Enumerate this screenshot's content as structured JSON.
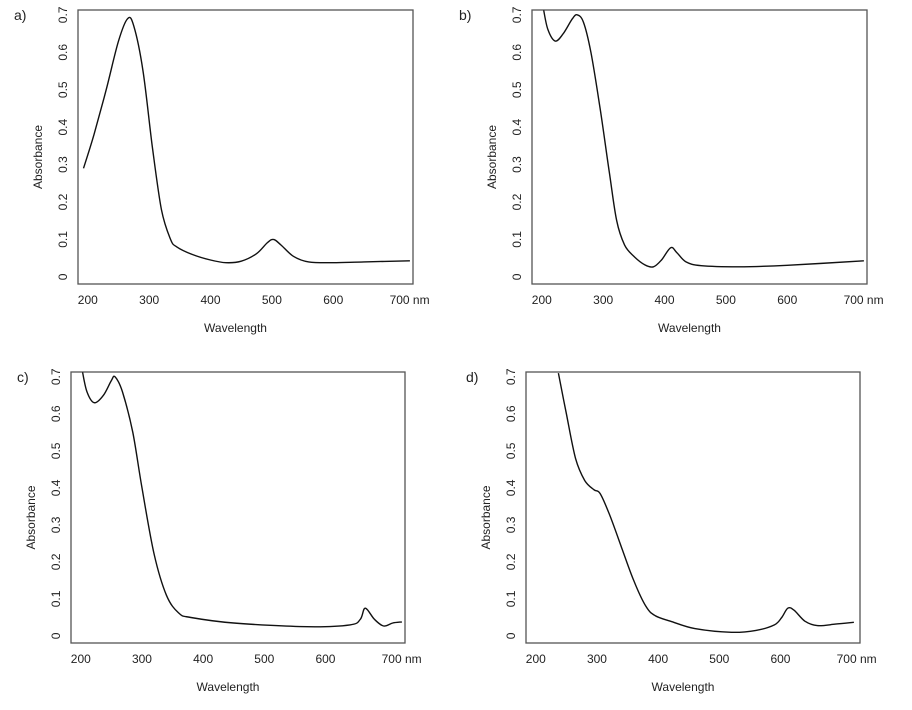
{
  "chart_data": [
    {
      "type": "line",
      "panel_label": "a)",
      "xlabel": "Wavelength",
      "ylabel": "Absorbance",
      "x_unit": "nm",
      "xticks": [
        "200",
        "300",
        "400",
        "500",
        "600",
        "700 nm"
      ],
      "xtick_values": [
        200,
        300,
        400,
        500,
        600,
        700
      ],
      "yticks": [
        "0",
        "0.1",
        "0.2",
        "0.3",
        "0.4",
        "0.5",
        "0.6",
        "0.7"
      ],
      "ytick_values": [
        0,
        0.1,
        0.2,
        0.3,
        0.4,
        0.5,
        0.6,
        0.7
      ],
      "xlim": [
        184,
        730
      ],
      "ylim": [
        -0.019,
        0.713
      ],
      "grid": false,
      "points": [
        [
          193,
          0.29
        ],
        [
          210,
          0.38
        ],
        [
          230,
          0.5
        ],
        [
          250,
          0.63
        ],
        [
          265,
          0.69
        ],
        [
          275,
          0.67
        ],
        [
          290,
          0.55
        ],
        [
          305,
          0.35
        ],
        [
          320,
          0.18
        ],
        [
          335,
          0.1
        ],
        [
          345,
          0.08
        ],
        [
          370,
          0.06
        ],
        [
          400,
          0.045
        ],
        [
          425,
          0.038
        ],
        [
          450,
          0.042
        ],
        [
          475,
          0.062
        ],
        [
          493,
          0.092
        ],
        [
          503,
          0.1
        ],
        [
          515,
          0.085
        ],
        [
          535,
          0.055
        ],
        [
          560,
          0.04
        ],
        [
          600,
          0.038
        ],
        [
          650,
          0.04
        ],
        [
          725,
          0.043
        ]
      ]
    },
    {
      "type": "line",
      "panel_label": "b)",
      "xlabel": "Wavelength",
      "ylabel": "Absorbance",
      "x_unit": "nm",
      "xticks": [
        "200",
        "300",
        "400",
        "500",
        "600",
        "700 nm"
      ],
      "xtick_values": [
        200,
        300,
        400,
        500,
        600,
        700
      ],
      "yticks": [
        "0",
        "0.1",
        "0.2",
        "0.3",
        "0.4",
        "0.5",
        "0.6",
        "0.7"
      ],
      "ytick_values": [
        0,
        0.1,
        0.2,
        0.3,
        0.4,
        0.5,
        0.6,
        0.7
      ],
      "xlim": [
        184,
        730
      ],
      "ylim": [
        -0.019,
        0.713
      ],
      "grid": false,
      "points": [
        [
          203,
          0.712
        ],
        [
          210,
          0.66
        ],
        [
          222,
          0.63
        ],
        [
          235,
          0.65
        ],
        [
          250,
          0.69
        ],
        [
          258,
          0.7
        ],
        [
          268,
          0.68
        ],
        [
          280,
          0.6
        ],
        [
          295,
          0.45
        ],
        [
          310,
          0.28
        ],
        [
          322,
          0.15
        ],
        [
          335,
          0.085
        ],
        [
          350,
          0.055
        ],
        [
          368,
          0.032
        ],
        [
          382,
          0.027
        ],
        [
          395,
          0.045
        ],
        [
          410,
          0.078
        ],
        [
          420,
          0.065
        ],
        [
          435,
          0.04
        ],
        [
          460,
          0.03
        ],
        [
          520,
          0.027
        ],
        [
          600,
          0.031
        ],
        [
          725,
          0.043
        ]
      ]
    },
    {
      "type": "line",
      "panel_label": "c)",
      "xlabel": "Wavelength",
      "ylabel": "Absorbance",
      "x_unit": "nm",
      "xticks": [
        "200",
        "300",
        "400",
        "500",
        "600",
        "700 nm"
      ],
      "xtick_values": [
        200,
        300,
        400,
        500,
        600,
        700
      ],
      "yticks": [
        "0",
        "0.1",
        "0.2",
        "0.3",
        "0.4",
        "0.5",
        "0.6",
        "0.7"
      ],
      "ytick_values": [
        0,
        0.1,
        0.2,
        0.3,
        0.4,
        0.5,
        0.6,
        0.7
      ],
      "xlim": [
        184,
        730
      ],
      "ylim": [
        -0.019,
        0.713
      ],
      "grid": false,
      "points": [
        [
          203,
          0.712
        ],
        [
          210,
          0.66
        ],
        [
          222,
          0.63
        ],
        [
          237,
          0.65
        ],
        [
          250,
          0.69
        ],
        [
          256,
          0.7
        ],
        [
          268,
          0.66
        ],
        [
          285,
          0.55
        ],
        [
          300,
          0.4
        ],
        [
          320,
          0.22
        ],
        [
          340,
          0.11
        ],
        [
          360,
          0.062
        ],
        [
          380,
          0.05
        ],
        [
          450,
          0.035
        ],
        [
          570,
          0.025
        ],
        [
          640,
          0.03
        ],
        [
          657,
          0.045
        ],
        [
          665,
          0.075
        ],
        [
          680,
          0.045
        ],
        [
          695,
          0.027
        ],
        [
          710,
          0.035
        ],
        [
          725,
          0.038
        ]
      ]
    },
    {
      "type": "line",
      "panel_label": "d)",
      "xlabel": "Wavelength",
      "ylabel": "Absorbance",
      "x_unit": "nm",
      "xticks": [
        "200",
        "300",
        "400",
        "500",
        "600",
        "700 nm"
      ],
      "xtick_values": [
        200,
        300,
        400,
        500,
        600,
        700
      ],
      "yticks": [
        "0",
        "0.1",
        "0.2",
        "0.3",
        "0.4",
        "0.5",
        "0.6",
        "0.7"
      ],
      "ytick_values": [
        0,
        0.1,
        0.2,
        0.3,
        0.4,
        0.5,
        0.6,
        0.7
      ],
      "xlim": [
        184,
        730
      ],
      "ylim": [
        -0.019,
        0.713
      ],
      "grid": false,
      "points": [
        [
          237,
          0.71
        ],
        [
          250,
          0.6
        ],
        [
          265,
          0.48
        ],
        [
          280,
          0.42
        ],
        [
          295,
          0.395
        ],
        [
          305,
          0.385
        ],
        [
          320,
          0.33
        ],
        [
          340,
          0.24
        ],
        [
          360,
          0.15
        ],
        [
          380,
          0.08
        ],
        [
          395,
          0.055
        ],
        [
          420,
          0.04
        ],
        [
          460,
          0.02
        ],
        [
          520,
          0.01
        ],
        [
          560,
          0.015
        ],
        [
          590,
          0.03
        ],
        [
          602,
          0.05
        ],
        [
          612,
          0.075
        ],
        [
          622,
          0.07
        ],
        [
          640,
          0.04
        ],
        [
          660,
          0.028
        ],
        [
          690,
          0.032
        ],
        [
          720,
          0.037
        ]
      ]
    }
  ]
}
